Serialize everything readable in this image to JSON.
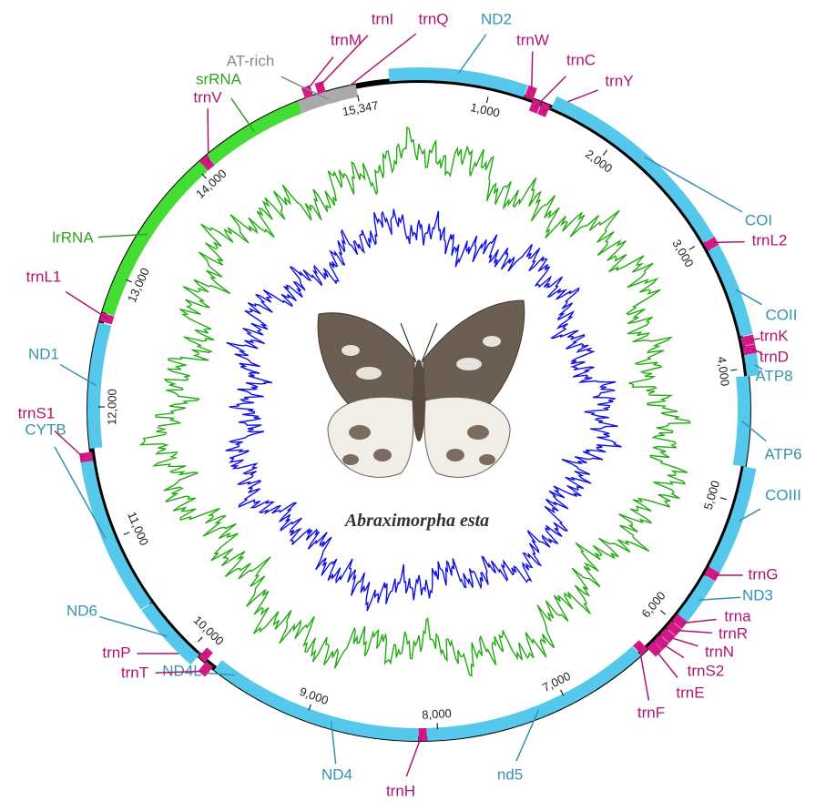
{
  "title": "Abraximorpha esta",
  "genes": [
    {
      "label": "trnM"
    },
    {
      "label": "trnI"
    },
    {
      "label": "trnQ"
    },
    {
      "label": "ND2"
    },
    {
      "label": "trnW"
    },
    {
      "label": "trnC"
    },
    {
      "label": "trnY"
    },
    {
      "label": "COI"
    },
    {
      "label": "trnL2"
    },
    {
      "label": "COII"
    },
    {
      "label": "trnK"
    },
    {
      "label": "trnD"
    },
    {
      "label": "ATP8"
    },
    {
      "label": "ATP6"
    },
    {
      "label": "COIII"
    },
    {
      "label": "trnG"
    },
    {
      "label": "ND3"
    },
    {
      "label": "trna"
    },
    {
      "label": "trnR"
    },
    {
      "label": "trnN"
    },
    {
      "label": "trnS2"
    },
    {
      "label": "trnE"
    },
    {
      "label": "trnF"
    },
    {
      "label": "nd5"
    },
    {
      "label": "trnH"
    },
    {
      "label": "ND4"
    },
    {
      "label": "ND4L"
    },
    {
      "label": "trnT"
    },
    {
      "label": "trnP"
    },
    {
      "label": "ND6"
    },
    {
      "label": "CYTB"
    },
    {
      "label": "trnS1"
    },
    {
      "label": "ND1"
    },
    {
      "label": "trnL1"
    },
    {
      "label": "lrRNA"
    },
    {
      "label": "trnV"
    },
    {
      "label": "srRNA"
    },
    {
      "label": "AT-rich"
    }
  ],
  "ticks": [
    "1,000",
    "2,000",
    "3,000",
    "4,000",
    "5,000",
    "6,000",
    "7,000",
    "8,000",
    "9,000",
    "10,000",
    "11,000",
    "12,000",
    "13,000",
    "14,000",
    "15,347"
  ]
}
